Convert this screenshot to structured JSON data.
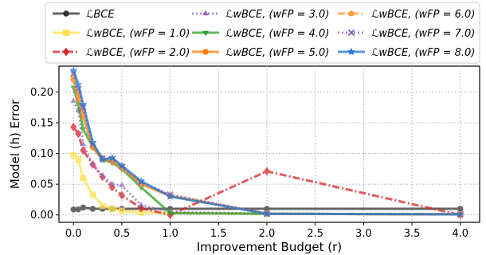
{
  "chart_data": {
    "type": "line",
    "title": "",
    "xlabel": "Improvement Budget (r)",
    "ylabel": "Model (h) Error",
    "xlim": [
      -0.15,
      4.2
    ],
    "ylim": [
      -0.012,
      0.242
    ],
    "xticks": [
      "0.0",
      "0.5",
      "1.0",
      "1.5",
      "2.0",
      "2.5",
      "3.0",
      "3.5",
      "4.0"
    ],
    "yticks": [
      "0.00",
      "0.05",
      "0.10",
      "0.15",
      "0.20"
    ],
    "grid": true,
    "legend_position": "top",
    "series": [
      {
        "name": "ℒBCE",
        "color": "#333333",
        "dash": "",
        "marker": "circle",
        "x": [
          0,
          0.05,
          0.1,
          0.2,
          0.3,
          0.4,
          0.5,
          0.7,
          1.0,
          2.0,
          4.0
        ],
        "y": [
          0.009,
          0.009,
          0.012,
          0.01,
          0.01,
          0.01,
          0.01,
          0.01,
          0.01,
          0.01,
          0.01
        ]
      },
      {
        "name": "ℒwBCE, (wFP = 1.0)",
        "color": "#ffe14d",
        "dash": "",
        "marker": "square",
        "x": [
          0,
          0.05,
          0.1,
          0.2,
          0.3,
          0.4,
          0.5,
          0.7,
          1.0,
          2.0,
          4.0
        ],
        "y": [
          0.097,
          0.09,
          0.06,
          0.033,
          0.015,
          0.01,
          0.007,
          0.004,
          0.003,
          0.002,
          0.001
        ]
      },
      {
        "name": "ℒwBCE, (wFP = 2.0)",
        "color": "#d62728",
        "dash": "9,3,2,3",
        "marker": "diamond",
        "x": [
          0,
          0.05,
          0.1,
          0.2,
          0.3,
          0.4,
          0.5,
          0.7,
          1.0,
          2.0,
          4.0
        ],
        "y": [
          0.143,
          0.132,
          0.105,
          0.082,
          0.062,
          0.045,
          0.032,
          0.011,
          0.0,
          0.071,
          0.0
        ]
      },
      {
        "name": "ℒwBCE, (wFP = 3.0)",
        "color": "#9467bd",
        "dash": "2,3",
        "marker": "triangle",
        "x": [
          0,
          0.05,
          0.1,
          0.2,
          0.3,
          0.4,
          0.5,
          0.7,
          1.0,
          2.0,
          4.0
        ],
        "y": [
          0.185,
          0.17,
          0.115,
          0.082,
          0.064,
          0.05,
          0.048,
          0.016,
          0.005,
          0.002,
          0.001
        ]
      },
      {
        "name": "ℒwBCE, (wFP = 4.0)",
        "color": "#2ca02c",
        "dash": "",
        "marker": "triangle-down",
        "x": [
          0,
          0.05,
          0.1,
          0.2,
          0.3,
          0.4,
          0.5,
          0.7,
          1.0,
          2.0,
          4.0
        ],
        "y": [
          0.207,
          0.18,
          0.14,
          0.11,
          0.09,
          0.085,
          0.075,
          0.045,
          0.003,
          0.002,
          0.001
        ]
      },
      {
        "name": "ℒwBCE, (wFP = 5.0)",
        "color": "#ff7f0e",
        "dash": "",
        "marker": "hexagon",
        "x": [
          0,
          0.05,
          0.1,
          0.2,
          0.3,
          0.4,
          0.5,
          0.7,
          1.0,
          2.0,
          4.0
        ],
        "y": [
          0.22,
          0.19,
          0.16,
          0.11,
          0.091,
          0.087,
          0.077,
          0.05,
          0.031,
          0.002,
          0.001
        ]
      },
      {
        "name": "ℒwBCE, (wFP = 6.0)",
        "color": "#ff9933",
        "dash": "9,3,2,3",
        "marker": "pentagon",
        "x": [
          0,
          0.05,
          0.1,
          0.2,
          0.3,
          0.4,
          0.5,
          0.7,
          1.0,
          2.0,
          4.0
        ],
        "y": [
          0.225,
          0.2,
          0.17,
          0.113,
          0.093,
          0.09,
          0.078,
          0.052,
          0.032,
          0.002,
          0.001
        ]
      },
      {
        "name": "ℒwBCE, (wFP = 7.0)",
        "color": "#8f5fbf",
        "dash": "2,3",
        "marker": "x",
        "x": [
          0,
          0.05,
          0.1,
          0.2,
          0.3,
          0.4,
          0.5,
          0.7,
          1.0,
          2.0,
          4.0
        ],
        "y": [
          0.23,
          0.205,
          0.175,
          0.115,
          0.092,
          0.091,
          0.079,
          0.053,
          0.033,
          0.002,
          0.001
        ]
      },
      {
        "name": "ℒwBCE, (wFP = 8.0)",
        "color": "#1f77d4",
        "dash": "",
        "marker": "star",
        "x": [
          0,
          0.05,
          0.1,
          0.2,
          0.3,
          0.4,
          0.5,
          0.7,
          1.0,
          2.0,
          4.0
        ],
        "y": [
          0.235,
          0.212,
          0.18,
          0.118,
          0.09,
          0.093,
          0.08,
          0.055,
          0.03,
          0.002,
          0.001
        ]
      }
    ]
  }
}
